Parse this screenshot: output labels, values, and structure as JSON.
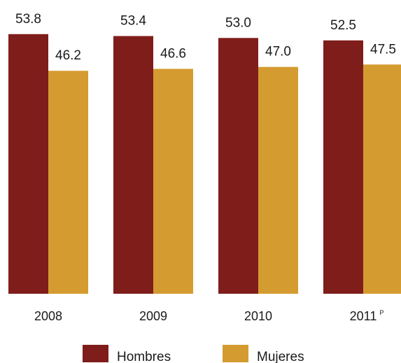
{
  "chart_data": {
    "type": "bar",
    "categories": [
      "2008",
      "2009",
      "2010",
      "2011"
    ],
    "category_superscripts": [
      "",
      "",
      "",
      "P"
    ],
    "series": [
      {
        "name": "Hombres",
        "values": [
          53.8,
          53.4,
          53.0,
          52.5
        ],
        "color": "#7f1d1b"
      },
      {
        "name": "Mujeres",
        "values": [
          46.2,
          46.6,
          47.0,
          47.5
        ],
        "color": "#d49b30"
      }
    ],
    "value_labels": {
      "Hombres": [
        "53.8",
        "53.4",
        "53.0",
        "52.5"
      ],
      "Mujeres": [
        "46.2",
        "46.6",
        "47.0",
        "47.5"
      ]
    },
    "legend": [
      "Hombres",
      "Mujeres"
    ],
    "legend_position": "bottom",
    "grid": false,
    "title": "",
    "xlabel": "",
    "ylabel": ""
  }
}
